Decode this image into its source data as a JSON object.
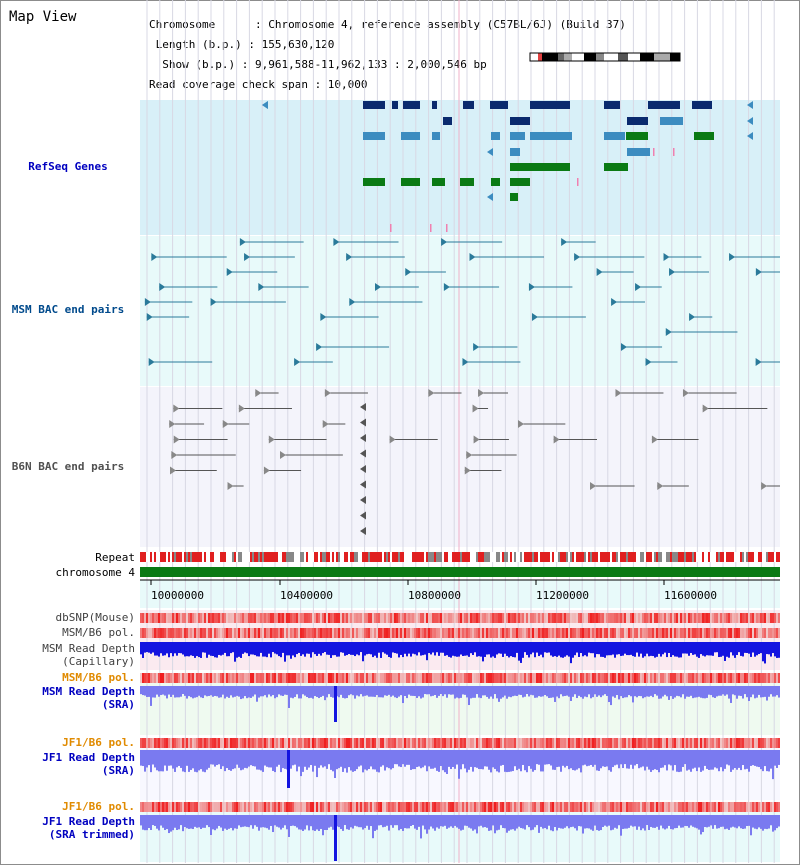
{
  "view_title": "Map View",
  "info_lines": [
    "Chromosome      : Chromosome 4, reference assembly (C57BL/6J) (Build 37)",
    " Length (b.p.) : 155,630,120",
    "  Show (b.p.) : 9,961,588-11,962,133 : 2,000,546 bp",
    "Read coverage check span : 10,000"
  ],
  "tracks": {
    "refseq": "RefSeq Genes",
    "msm_bac": "MSM BAC end pairs",
    "b6n_bac": "B6N BAC end pairs",
    "repeat": "Repeat",
    "chromosome": "chromosome 4",
    "dbsnp": "dbSNP(Mouse)",
    "msm_b6_pol_1": "MSM/B6 pol.",
    "msm_read_depth_cap_1": "MSM Read Depth",
    "msm_read_depth_cap_2": "(Capillary)",
    "msm_b6_pol_2": "MSM/B6 pol.",
    "msm_read_depth_sra_1": "MSM Read Depth",
    "msm_read_depth_sra_2": "(SRA)",
    "jf1_b6_pol_1": "JF1/B6 pol.",
    "jf1_read_depth_sra_1": "JF1 Read Depth",
    "jf1_read_depth_sra_2": "(SRA)",
    "jf1_b6_pol_2": "JF1/B6 pol.",
    "jf1_read_depth_trim_1": "JF1 Read Depth",
    "jf1_read_depth_trim_2": "(SRA trimmed)"
  },
  "axis_ticks": [
    "10000000",
    "10400000",
    "10800000",
    "11200000",
    "11600000"
  ],
  "colors": {
    "refseq_bg": "#d8f0f8",
    "bac_bg": "#e8fafa",
    "b6n_bg": "#f4f4fb",
    "gene_dark": "#0a2a6e",
    "gene_mid": "#3c8cc0",
    "gene_green": "#0a7a14",
    "msm_bac_line": "#2a7a9a",
    "b6n_line": "#555555",
    "depth_blue": "#1414e0",
    "depth_light": "#7a7af0",
    "pol_red": "#e04040",
    "label_blue": "#0000c0",
    "label_orange": "#e08a00"
  }
}
